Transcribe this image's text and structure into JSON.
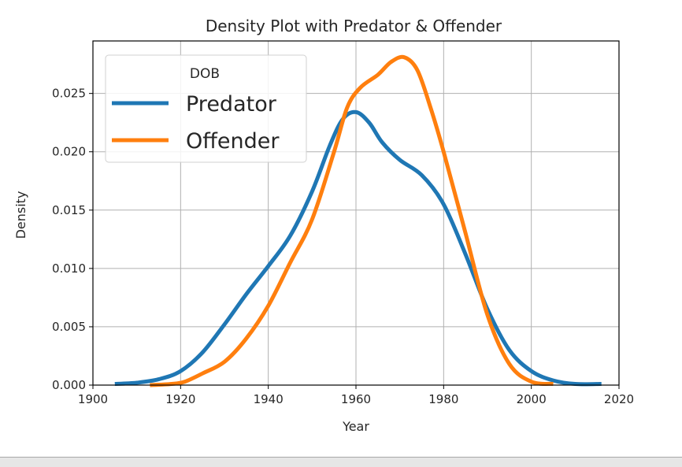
{
  "chart_data": {
    "type": "line",
    "title": "Density Plot with Predator & Offender",
    "xlabel": "Year",
    "ylabel": "Density",
    "xlim": [
      1900,
      2020
    ],
    "ylim": [
      0.0,
      0.0295
    ],
    "x_ticks": [
      "1900",
      "1920",
      "1940",
      "1960",
      "1980",
      "2000",
      "2020"
    ],
    "y_ticks": [
      "0.000",
      "0.005",
      "0.010",
      "0.015",
      "0.020",
      "0.025"
    ],
    "grid": true,
    "legend": {
      "title": "DOB",
      "placement": "top-left"
    },
    "series": [
      {
        "name": "Predator",
        "color": "#1f77b4",
        "points": [
          [
            1905,
            0.0001
          ],
          [
            1910,
            0.0002
          ],
          [
            1915,
            0.0005
          ],
          [
            1920,
            0.0012
          ],
          [
            1925,
            0.0028
          ],
          [
            1930,
            0.0052
          ],
          [
            1935,
            0.0078
          ],
          [
            1940,
            0.0102
          ],
          [
            1945,
            0.0128
          ],
          [
            1950,
            0.0166
          ],
          [
            1954,
            0.0205
          ],
          [
            1957,
            0.0228
          ],
          [
            1960,
            0.0234
          ],
          [
            1963,
            0.0225
          ],
          [
            1966,
            0.0208
          ],
          [
            1970,
            0.0193
          ],
          [
            1975,
            0.018
          ],
          [
            1980,
            0.0155
          ],
          [
            1985,
            0.0112
          ],
          [
            1990,
            0.0065
          ],
          [
            1995,
            0.003
          ],
          [
            2000,
            0.0012
          ],
          [
            2005,
            0.0004
          ],
          [
            2010,
            0.0001
          ],
          [
            2016,
            0.0001
          ]
        ]
      },
      {
        "name": "Offender",
        "color": "#ff7f0e",
        "points": [
          [
            1913,
            0.0
          ],
          [
            1918,
            0.0001
          ],
          [
            1921,
            0.0003
          ],
          [
            1925,
            0.001
          ],
          [
            1930,
            0.002
          ],
          [
            1935,
            0.004
          ],
          [
            1940,
            0.0068
          ],
          [
            1945,
            0.0105
          ],
          [
            1950,
            0.0142
          ],
          [
            1955,
            0.02
          ],
          [
            1958,
            0.0238
          ],
          [
            1961,
            0.0255
          ],
          [
            1965,
            0.0266
          ],
          [
            1968,
            0.0277
          ],
          [
            1971,
            0.0281
          ],
          [
            1974,
            0.027
          ],
          [
            1977,
            0.0238
          ],
          [
            1980,
            0.02
          ],
          [
            1985,
            0.013
          ],
          [
            1990,
            0.006
          ],
          [
            1995,
            0.0018
          ],
          [
            2000,
            0.0003
          ],
          [
            2005,
            0.0001
          ]
        ]
      }
    ]
  }
}
